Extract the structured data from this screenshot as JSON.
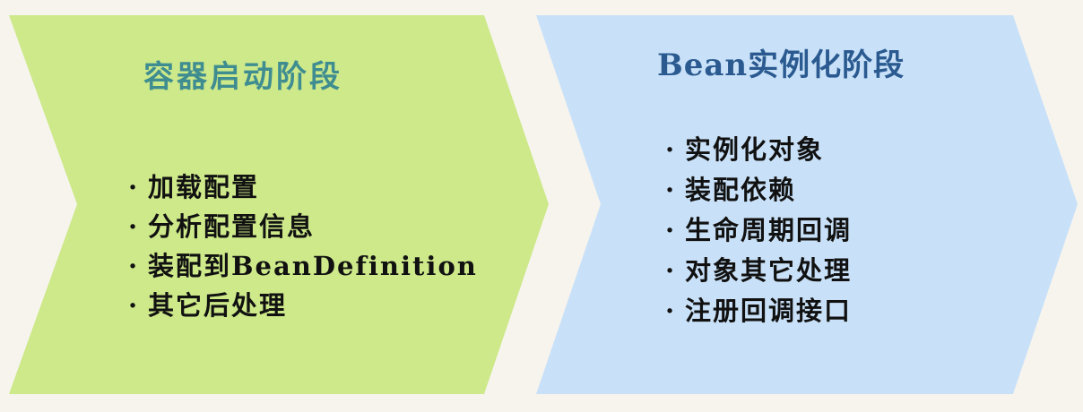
{
  "left_stage": {
    "title": "容器启动阶段",
    "items": [
      {
        "bullet": "·",
        "label": "加载配置"
      },
      {
        "bullet": "·",
        "label": "分析配置信息"
      },
      {
        "bullet": "·",
        "label": "装配到BeanDefinition"
      },
      {
        "bullet": "·",
        "label": "其它后处理"
      }
    ]
  },
  "right_stage": {
    "title": "Bean实例化阶段",
    "items": [
      {
        "bullet": "·",
        "label": "实例化对象"
      },
      {
        "bullet": "·",
        "label": "装配依赖"
      },
      {
        "bullet": "·",
        "label": "生命周期回调"
      },
      {
        "bullet": "·",
        "label": "对象其它处理"
      },
      {
        "bullet": "·",
        "label": "注册回调接口"
      }
    ]
  },
  "colors": {
    "left_fill": "#cde98a",
    "right_fill": "#c9e1f8",
    "left_title": "#3f8d91",
    "right_title": "#2a5a90",
    "text": "#111111"
  }
}
